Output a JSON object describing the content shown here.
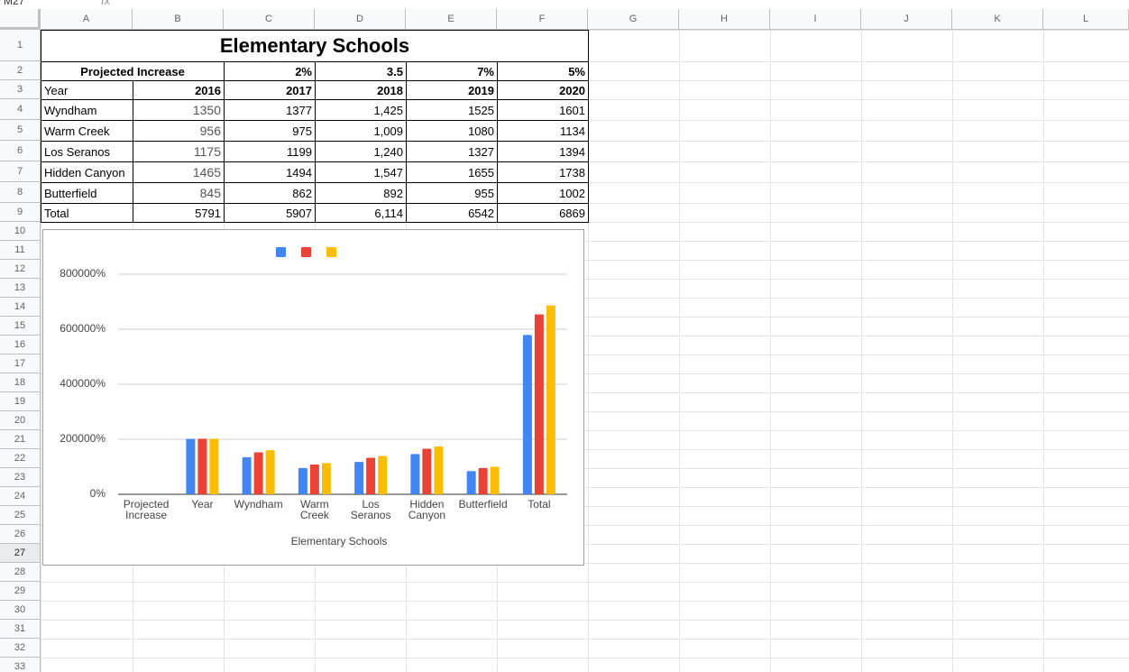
{
  "name_box": "M27",
  "formula_icon": "fx",
  "column_headers": [
    "A",
    "B",
    "C",
    "D",
    "E",
    "F",
    "G",
    "H",
    "I",
    "J",
    "K",
    "L"
  ],
  "row_headers": [
    1,
    2,
    3,
    4,
    5,
    6,
    7,
    8,
    9,
    10,
    11,
    12,
    13,
    14,
    15,
    16,
    17,
    18,
    19,
    20,
    21,
    22,
    23,
    24,
    25,
    26,
    27,
    28,
    29,
    30,
    31,
    32,
    33
  ],
  "sheet": {
    "title": "Elementary Schools",
    "increase_row": {
      "label": "Projected Increase",
      "values": [
        "2%",
        "3.5",
        "7%",
        "5%"
      ]
    },
    "rows": [
      [
        "Year",
        "2016",
        "2017",
        "2018",
        "2019",
        "2020"
      ],
      [
        "Wyndham",
        "1350",
        "1377",
        "1,425",
        "1525",
        "1601"
      ],
      [
        "Warm Creek",
        "956",
        "975",
        "1,009",
        "1080",
        "1134"
      ],
      [
        "Los Seranos",
        "1175",
        "1199",
        "1,240",
        "1327",
        "1394"
      ],
      [
        "Hidden Canyon",
        "1465",
        "1494",
        "1,547",
        "1655",
        "1738"
      ],
      [
        "Butterfield",
        "845",
        "862",
        "892",
        "955",
        "1002"
      ],
      [
        "Total",
        "5791",
        "5907",
        "6,114",
        "6542",
        "6869"
      ]
    ]
  },
  "chart_data": {
    "type": "bar",
    "x_label": "Elementary Schools",
    "categories": [
      "Projected Increase",
      "Year",
      "Wyndham",
      "Warm Creek",
      "Los Seranos",
      "Hidden Canyon",
      "Butterfield",
      "Total"
    ],
    "series": [
      {
        "color": "#4285f4",
        "values": [
          null,
          201600,
          135000,
          95600,
          117500,
          146500,
          84500,
          579100
        ]
      },
      {
        "color": "#ea4335",
        "values": [
          7,
          201900,
          152500,
          108000,
          132700,
          165500,
          95500,
          654200
        ]
      },
      {
        "color": "#fbbc04",
        "values": [
          5,
          202000,
          160100,
          113400,
          139400,
          173800,
          100200,
          686900
        ]
      }
    ],
    "ylim": [
      0,
      800000
    ],
    "yticks": [
      {
        "value": 0,
        "label": "0%"
      },
      {
        "value": 200000,
        "label": "200000%"
      },
      {
        "value": 400000,
        "label": "400000%"
      },
      {
        "value": 600000,
        "label": "600000%"
      },
      {
        "value": 800000,
        "label": "800000%"
      }
    ],
    "grid": true,
    "legend": "top"
  }
}
